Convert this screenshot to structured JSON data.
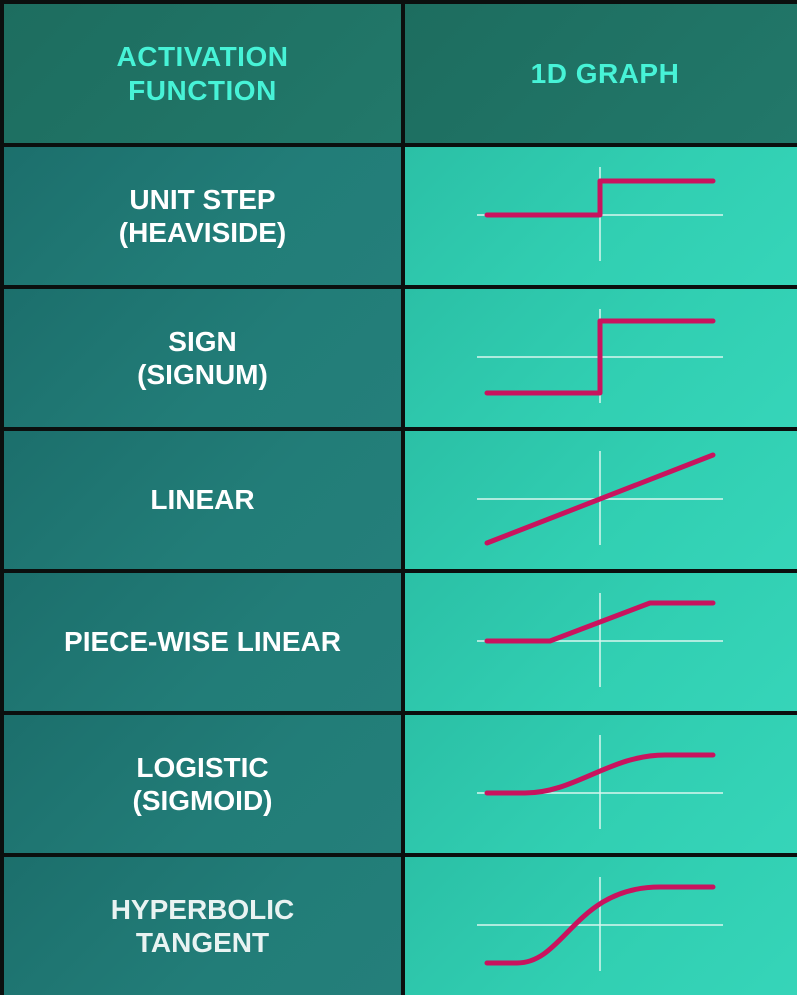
{
  "table": {
    "header": {
      "col1": "ACTIVATION\nFUNCTION",
      "col2": "1D GRAPH"
    },
    "rows": [
      {
        "name": "UNIT STEP\n(HEAVISIDE)",
        "graph": "unit-step"
      },
      {
        "name": "SIGN\n(SIGNUM)",
        "graph": "sign"
      },
      {
        "name": "LINEAR",
        "graph": "linear"
      },
      {
        "name": "PIECE-WISE LINEAR",
        "graph": "piece-wise-linear"
      },
      {
        "name": "LOGISTIC\n(SIGMOID)",
        "graph": "logistic"
      },
      {
        "name": "HYPERBOLIC\nTANGENT",
        "graph": "tanh"
      }
    ]
  },
  "colors": {
    "curve": "#c9135e",
    "axis": "#d9f7ef",
    "header_text": "#47f3d7",
    "name_bg": "#227d78",
    "graph_bg": "#31cfb2"
  }
}
